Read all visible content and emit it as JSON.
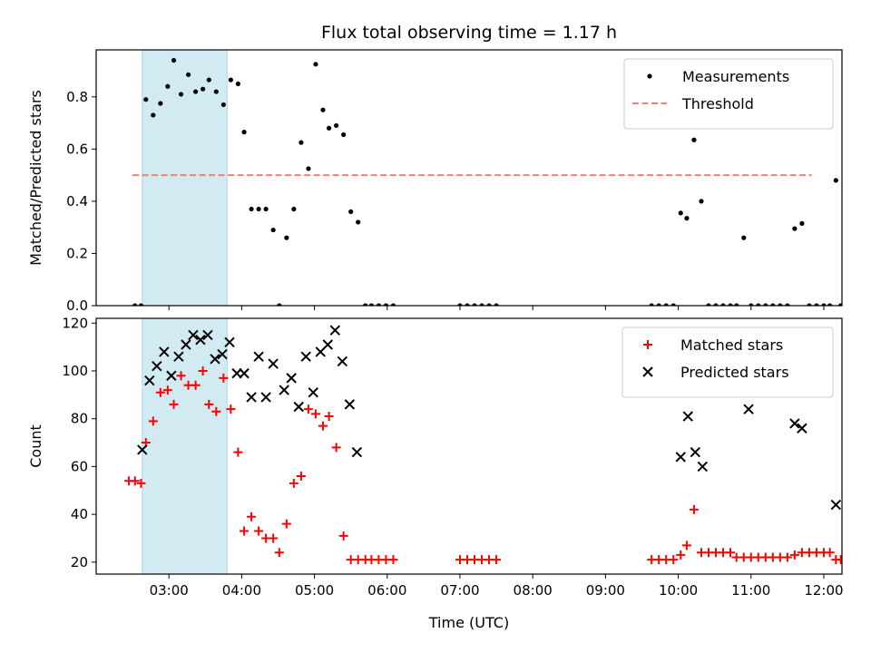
{
  "chart_data": [
    {
      "type": "scatter",
      "title": "Flux total observing time = 1.17 h",
      "ylabel": "Matched/Predicted stars",
      "xlabel": "",
      "xlim": [
        "02:00",
        "12:15"
      ],
      "ylim": [
        0,
        0.98
      ],
      "yticks": [
        0.0,
        0.2,
        0.4,
        0.6,
        0.8
      ],
      "ytick_labels": [
        "0.0",
        "0.2",
        "0.4",
        "0.6",
        "0.8"
      ],
      "grid": false,
      "legend_position": "top-right",
      "highlight_span": {
        "start": "02:38",
        "end": "03:48",
        "color": "#add8e6"
      },
      "threshold": {
        "name": "Threshold",
        "value": 0.5,
        "start": "02:30",
        "end": "11:50",
        "color": "#f08080",
        "style": "dashed"
      },
      "series": [
        {
          "name": "Measurements",
          "color": "#000000",
          "marker": "dot",
          "points": [
            [
              "02:32",
              0.0
            ],
            [
              "02:37",
              0.0
            ],
            [
              "02:41",
              0.79
            ],
            [
              "02:47",
              0.73
            ],
            [
              "02:53",
              0.775
            ],
            [
              "02:59",
              0.84
            ],
            [
              "03:04",
              0.94
            ],
            [
              "03:10",
              0.81
            ],
            [
              "03:16",
              0.885
            ],
            [
              "03:22",
              0.82
            ],
            [
              "03:28",
              0.83
            ],
            [
              "03:33",
              0.865
            ],
            [
              "03:39",
              0.82
            ],
            [
              "03:45",
              0.77
            ],
            [
              "03:51",
              0.865
            ],
            [
              "03:57",
              0.85
            ],
            [
              "04:02",
              0.665
            ],
            [
              "04:08",
              0.37
            ],
            [
              "04:14",
              0.37
            ],
            [
              "04:20",
              0.37
            ],
            [
              "04:26",
              0.29
            ],
            [
              "04:31",
              0.0
            ],
            [
              "04:37",
              0.26
            ],
            [
              "04:43",
              0.37
            ],
            [
              "04:49",
              0.625
            ],
            [
              "04:55",
              0.525
            ],
            [
              "05:01",
              0.925
            ],
            [
              "05:07",
              0.75
            ],
            [
              "05:12",
              0.68
            ],
            [
              "05:18",
              0.69
            ],
            [
              "05:24",
              0.655
            ],
            [
              "05:30",
              0.36
            ],
            [
              "05:36",
              0.32
            ],
            [
              "05:42",
              0.0
            ],
            [
              "05:47",
              0.0
            ],
            [
              "05:53",
              0.0
            ],
            [
              "05:59",
              0.0
            ],
            [
              "06:05",
              0.0
            ],
            [
              "07:00",
              0.0
            ],
            [
              "07:06",
              0.0
            ],
            [
              "07:12",
              0.0
            ],
            [
              "07:18",
              0.0
            ],
            [
              "07:24",
              0.0
            ],
            [
              "07:30",
              0.0
            ],
            [
              "09:38",
              0.0
            ],
            [
              "09:44",
              0.0
            ],
            [
              "09:50",
              0.0
            ],
            [
              "09:56",
              0.0
            ],
            [
              "10:02",
              0.355
            ],
            [
              "10:07",
              0.335
            ],
            [
              "10:13",
              0.635
            ],
            [
              "10:19",
              0.4
            ],
            [
              "10:25",
              0.0
            ],
            [
              "10:31",
              0.0
            ],
            [
              "10:37",
              0.0
            ],
            [
              "10:43",
              0.0
            ],
            [
              "10:48",
              0.0
            ],
            [
              "10:54",
              0.26
            ],
            [
              "11:00",
              0.0
            ],
            [
              "11:06",
              0.0
            ],
            [
              "11:12",
              0.0
            ],
            [
              "11:18",
              0.0
            ],
            [
              "11:24",
              0.0
            ],
            [
              "11:30",
              0.0
            ],
            [
              "11:36",
              0.295
            ],
            [
              "11:42",
              0.315
            ],
            [
              "11:48",
              0.0
            ],
            [
              "11:54",
              0.0
            ],
            [
              "12:00",
              0.0
            ],
            [
              "12:05",
              0.0
            ],
            [
              "12:10",
              0.48
            ],
            [
              "12:14",
              0.0
            ]
          ]
        }
      ]
    },
    {
      "type": "scatter",
      "title": "",
      "ylabel": "Count",
      "xlabel": "Time (UTC)",
      "xlim": [
        "02:00",
        "12:15"
      ],
      "ylim": [
        15,
        122
      ],
      "xticks": [
        "03:00",
        "04:00",
        "05:00",
        "06:00",
        "07:00",
        "08:00",
        "09:00",
        "10:00",
        "11:00",
        "12:00"
      ],
      "yticks": [
        20,
        40,
        60,
        80,
        100,
        120
      ],
      "ytick_labels": [
        "20",
        "40",
        "60",
        "80",
        "100",
        "120"
      ],
      "grid": false,
      "legend_position": "top-right",
      "highlight_span": {
        "start": "02:38",
        "end": "03:48",
        "color": "#add8e6"
      },
      "series": [
        {
          "name": "Matched stars",
          "color": "#ff0000",
          "marker": "plus",
          "points": [
            [
              "02:27",
              54
            ],
            [
              "02:32",
              54
            ],
            [
              "02:37",
              53
            ],
            [
              "02:41",
              70
            ],
            [
              "02:47",
              79
            ],
            [
              "02:53",
              91
            ],
            [
              "02:59",
              92
            ],
            [
              "03:04",
              86
            ],
            [
              "03:10",
              98
            ],
            [
              "03:16",
              94
            ],
            [
              "03:22",
              94
            ],
            [
              "03:28",
              100
            ],
            [
              "03:33",
              86
            ],
            [
              "03:39",
              83
            ],
            [
              "03:45",
              97
            ],
            [
              "03:51",
              84
            ],
            [
              "03:57",
              66
            ],
            [
              "04:02",
              33
            ],
            [
              "04:08",
              39
            ],
            [
              "04:14",
              33
            ],
            [
              "04:20",
              30
            ],
            [
              "04:26",
              30
            ],
            [
              "04:31",
              24
            ],
            [
              "04:37",
              36
            ],
            [
              "04:43",
              53
            ],
            [
              "04:49",
              56
            ],
            [
              "04:55",
              84
            ],
            [
              "05:01",
              82
            ],
            [
              "05:07",
              77
            ],
            [
              "05:12",
              81
            ],
            [
              "05:18",
              68
            ],
            [
              "05:24",
              31
            ],
            [
              "05:30",
              21
            ],
            [
              "05:36",
              21
            ],
            [
              "05:42",
              21
            ],
            [
              "05:47",
              21
            ],
            [
              "05:53",
              21
            ],
            [
              "05:59",
              21
            ],
            [
              "06:05",
              21
            ],
            [
              "07:00",
              21
            ],
            [
              "07:06",
              21
            ],
            [
              "07:12",
              21
            ],
            [
              "07:18",
              21
            ],
            [
              "07:24",
              21
            ],
            [
              "07:30",
              21
            ],
            [
              "09:38",
              21
            ],
            [
              "09:44",
              21
            ],
            [
              "09:50",
              21
            ],
            [
              "09:56",
              21
            ],
            [
              "10:02",
              23
            ],
            [
              "10:07",
              27
            ],
            [
              "10:13",
              42
            ],
            [
              "10:19",
              24
            ],
            [
              "10:25",
              24
            ],
            [
              "10:31",
              24
            ],
            [
              "10:37",
              24
            ],
            [
              "10:43",
              24
            ],
            [
              "10:48",
              22
            ],
            [
              "10:54",
              22
            ],
            [
              "11:00",
              22
            ],
            [
              "11:06",
              22
            ],
            [
              "11:12",
              22
            ],
            [
              "11:18",
              22
            ],
            [
              "11:24",
              22
            ],
            [
              "11:30",
              22
            ],
            [
              "11:36",
              23
            ],
            [
              "11:42",
              24
            ],
            [
              "11:48",
              24
            ],
            [
              "11:54",
              24
            ],
            [
              "12:00",
              24
            ],
            [
              "12:05",
              24
            ],
            [
              "12:10",
              21
            ],
            [
              "12:14",
              21
            ]
          ]
        },
        {
          "name": "Predicted stars",
          "color": "#000000",
          "marker": "x",
          "points": [
            [
              "02:38",
              67
            ],
            [
              "02:44",
              96
            ],
            [
              "02:50",
              102
            ],
            [
              "02:56",
              108
            ],
            [
              "03:02",
              98
            ],
            [
              "03:08",
              106
            ],
            [
              "03:14",
              111
            ],
            [
              "03:20",
              115
            ],
            [
              "03:26",
              113
            ],
            [
              "03:32",
              115
            ],
            [
              "03:38",
              105
            ],
            [
              "03:44",
              107
            ],
            [
              "03:50",
              112
            ],
            [
              "03:56",
              99
            ],
            [
              "04:02",
              99
            ],
            [
              "04:08",
              89
            ],
            [
              "04:14",
              106
            ],
            [
              "04:20",
              89
            ],
            [
              "04:26",
              103
            ],
            [
              "04:35",
              92
            ],
            [
              "04:41",
              97
            ],
            [
              "04:47",
              85
            ],
            [
              "04:53",
              106
            ],
            [
              "04:59",
              91
            ],
            [
              "05:05",
              108
            ],
            [
              "05:11",
              111
            ],
            [
              "05:17",
              117
            ],
            [
              "05:23",
              104
            ],
            [
              "05:29",
              86
            ],
            [
              "05:35",
              66
            ],
            [
              "10:02",
              64
            ],
            [
              "10:08",
              81
            ],
            [
              "10:14",
              66
            ],
            [
              "10:20",
              60
            ],
            [
              "10:58",
              84
            ],
            [
              "11:36",
              78
            ],
            [
              "11:42",
              76
            ],
            [
              "12:10",
              44
            ]
          ]
        }
      ]
    }
  ]
}
